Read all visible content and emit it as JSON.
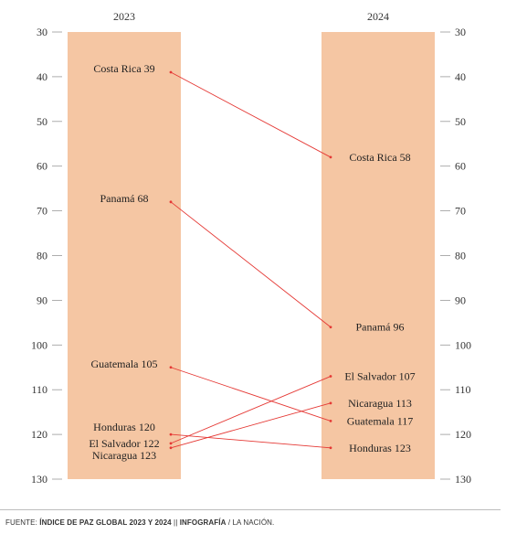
{
  "chart_data": {
    "type": "slope",
    "years": [
      "2023",
      "2024"
    ],
    "ylim": [
      30,
      130
    ],
    "yticks": [
      30,
      40,
      50,
      60,
      70,
      80,
      90,
      100,
      110,
      120,
      130
    ],
    "series": [
      {
        "name": "Costa Rica",
        "values": [
          39,
          58
        ]
      },
      {
        "name": "Panamá",
        "values": [
          68,
          96
        ]
      },
      {
        "name": "Guatemala",
        "values": [
          105,
          117
        ]
      },
      {
        "name": "Honduras",
        "values": [
          120,
          123
        ]
      },
      {
        "name": "El Salvador",
        "values": [
          122,
          107
        ]
      },
      {
        "name": "Nicaragua",
        "values": [
          123,
          113
        ]
      }
    ],
    "colors": {
      "band": "#f5c6a3",
      "line": "#e53935",
      "axis": "#999999"
    }
  },
  "footer": {
    "prefix": "FUENTE: ",
    "source": "ÍNDICE DE PAZ GLOBAL 2023 Y 2024",
    "sep": "  || ",
    "credit": "INFOGRAFÍA",
    "suffix": " / LA NACIÓN."
  }
}
